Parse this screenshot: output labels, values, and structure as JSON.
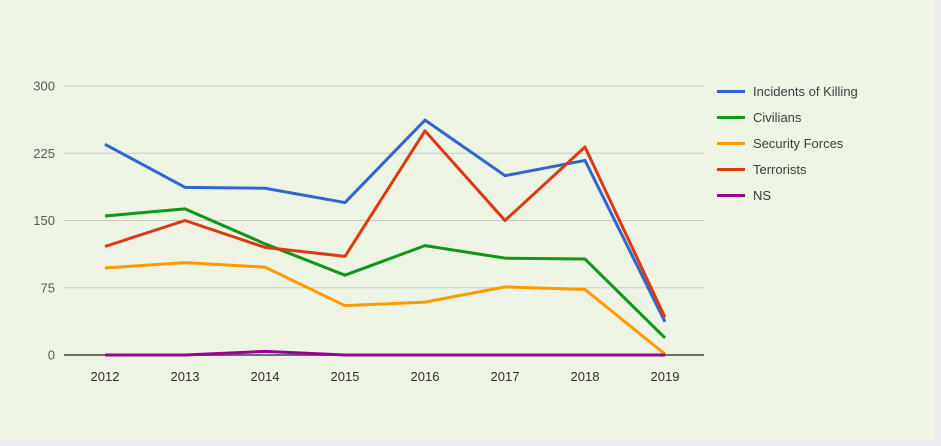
{
  "chart": {
    "background_color": "#eef4e4",
    "page_background": "#ededf1",
    "gridline_color": "#c9cac8",
    "axis_color": "#6b6b6b",
    "y_label_color": "#5a5a5a",
    "x_label_color": "#2e2e2e",
    "legend_text_color": "#3c3c3c"
  },
  "chart_data": {
    "type": "line",
    "title": "",
    "xlabel": "",
    "ylabel": "",
    "categories": [
      "2012",
      "2013",
      "2014",
      "2015",
      "2016",
      "2017",
      "2018",
      "2019"
    ],
    "series": [
      {
        "name": "Incidents of Killing",
        "color": "#3366cc",
        "values": [
          235,
          187,
          186,
          170,
          262,
          200,
          217,
          37
        ]
      },
      {
        "name": "Civilians",
        "color": "#109618",
        "values": [
          155,
          163,
          124,
          89,
          122,
          108,
          107,
          19
        ]
      },
      {
        "name": "Security Forces",
        "color": "#ff9900",
        "values": [
          97,
          103,
          98,
          55,
          59,
          76,
          73,
          1
        ]
      },
      {
        "name": "Terrorists",
        "color": "#dc3912",
        "values": [
          121,
          150,
          120,
          110,
          250,
          150,
          232,
          42
        ]
      },
      {
        "name": "NS",
        "color": "#990099",
        "values": [
          0,
          0,
          4,
          0,
          0,
          0,
          0,
          0
        ]
      }
    ],
    "ylim": [
      0,
      300
    ],
    "yticks": [
      0,
      75,
      150,
      225,
      300
    ],
    "grid": true,
    "legend_position": "right"
  }
}
